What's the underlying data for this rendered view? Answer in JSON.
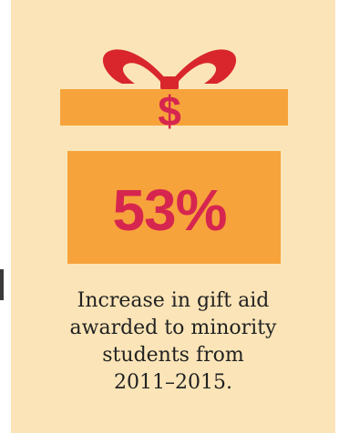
{
  "stat": {
    "value": "53%",
    "symbol": "$",
    "caption_lines": [
      "Increase in gift aid",
      "awarded to minority",
      "students from",
      "2011–2015."
    ]
  },
  "colors": {
    "background": "#fbe5b8",
    "box": "#f7a33b",
    "ribbon": "#d8262c",
    "value": "#d6264f",
    "text": "#222222"
  },
  "icons": [
    "gift-box-icon",
    "bow-icon"
  ]
}
